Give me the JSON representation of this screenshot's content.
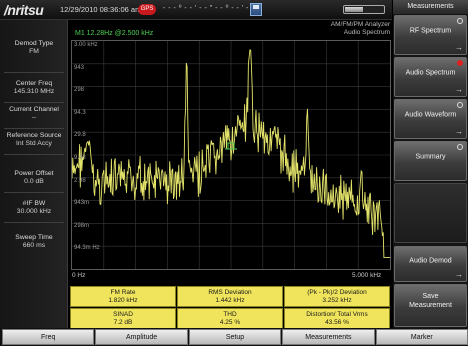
{
  "header": {
    "logo": "/nritsu",
    "datetime": "12/29/2010 08:36:06 am",
    "gps_badge": "GPS",
    "gps_coords": "- - - º - - ' - - \" - - º - - ' - - \"",
    "battery_level": 0.45,
    "mode_title": "AM/FM/PM Analyzer",
    "mode_subtitle": "Audio Spectrum"
  },
  "left_panel": {
    "items": [
      {
        "label": "Demod Type",
        "value": "FM"
      },
      {
        "label": "Center Freq",
        "value": "145.310 MHz"
      },
      {
        "label": "Current Channel",
        "value": "--"
      },
      {
        "label": "Reference Source",
        "value": "Int Std Accy"
      },
      {
        "label": "Power Offset",
        "value": "0.0 dB"
      },
      {
        "label": "#IF BW",
        "value": "30.000 kHz"
      },
      {
        "label": "Sweep Time",
        "value": "660 ms"
      }
    ]
  },
  "plot": {
    "marker_readout": "M1 12.28Hz @2.500 kHz",
    "y_labels": [
      "3.00 kHz",
      "943",
      "298",
      "94.3",
      "29.8",
      "9.43",
      "2.98",
      "943m",
      "298m",
      "94.3m Hz"
    ],
    "x_start": "0 Hz",
    "x_stop": "5.000 kHz",
    "trace_color": "#e3e36a",
    "marker_color": "#4ccf52",
    "grid_color": "#3a3a3a"
  },
  "measurements": [
    {
      "label": "FM Rate",
      "value": "1.820 kHz"
    },
    {
      "label": "RMS Deviation",
      "value": "1.442 kHz"
    },
    {
      "label": "(Pk - Pk)/2 Deviation",
      "value": "3.252 kHz"
    },
    {
      "label": "SINAD",
      "value": "7.2 dB"
    },
    {
      "label": "THD",
      "value": "4.25 %"
    },
    {
      "label": "Distortion/ Total Vrms",
      "value": "43.56 %"
    }
  ],
  "right_menu": {
    "title": "Measurements",
    "softkeys": [
      {
        "label": "RF Spectrum",
        "radio": true,
        "selected": false,
        "arrow": true
      },
      {
        "label": "Audio Spectrum",
        "radio": true,
        "selected": true,
        "arrow": true
      },
      {
        "label": "Audio Waveform",
        "radio": true,
        "selected": false,
        "arrow": true
      },
      {
        "label": "Summary",
        "radio": true,
        "selected": false,
        "arrow": false
      },
      {
        "label": "",
        "radio": false,
        "selected": false,
        "arrow": false
      },
      {
        "label": "Audio Demod",
        "radio": false,
        "selected": false,
        "arrow": true
      },
      {
        "label": "Save\nMeasurement",
        "radio": false,
        "selected": false,
        "arrow": false
      }
    ]
  },
  "bottom_menu": [
    "Freq",
    "Amplitude",
    "Setup",
    "Measurements",
    "Marker"
  ]
}
